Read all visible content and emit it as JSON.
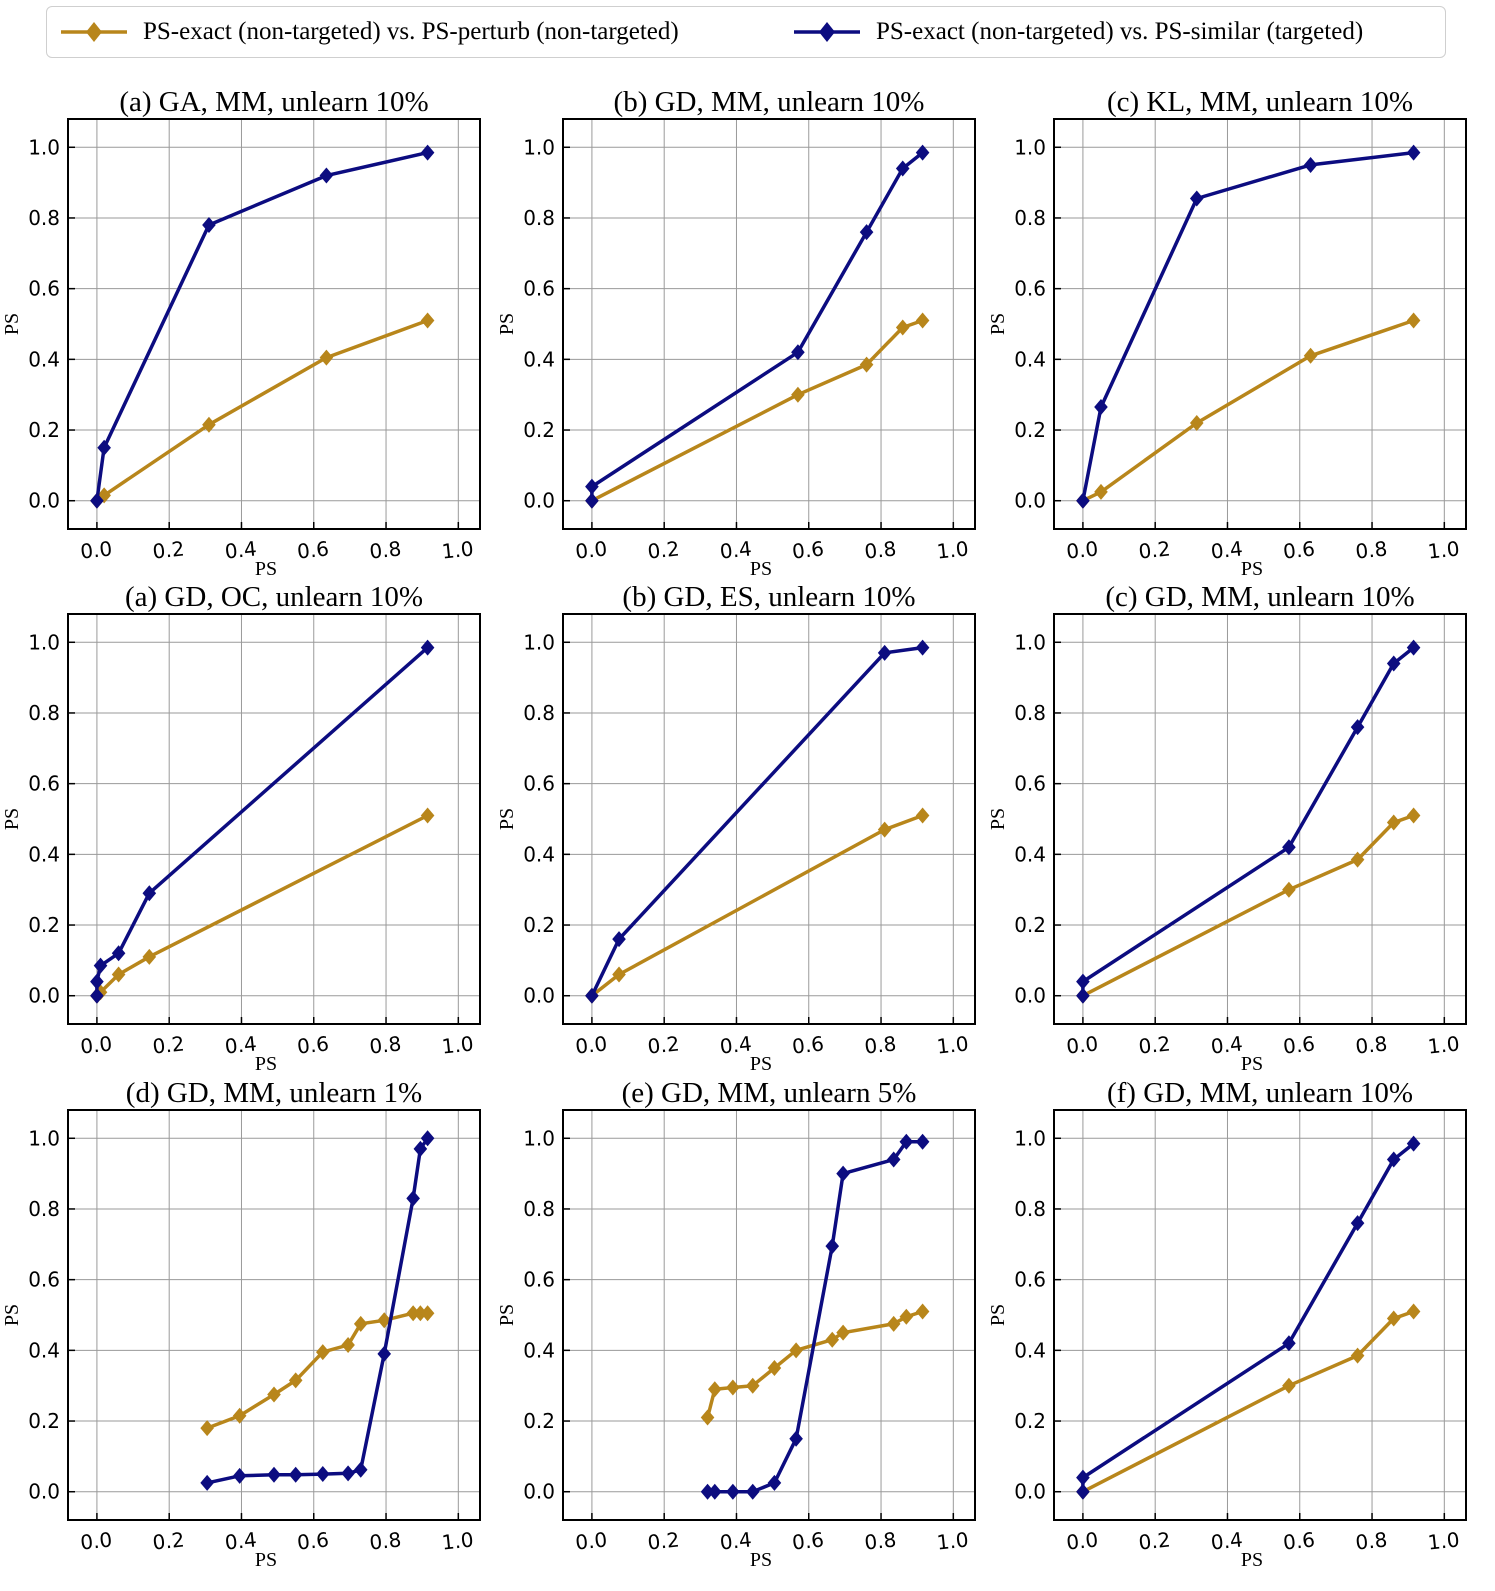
{
  "legend": {
    "items": [
      {
        "label": "PS-exact (non-targeted) vs. PS-perturb (non-targeted)",
        "color": "#b8861b"
      },
      {
        "label": "PS-exact (non-targeted) vs. PS-similar (targeted)",
        "color": "#0c0c80"
      }
    ]
  },
  "chart_data": [
    {
      "type": "line",
      "title": "(a) GA, MM, unlearn 10%",
      "xlabel": "PS",
      "ylabel": "PS",
      "xlim": [
        -0.08,
        1.06
      ],
      "ylim": [
        -0.08,
        1.08
      ],
      "grid": true,
      "x_ticks": [
        "0.0",
        "0.2",
        "0.4",
        "0.6",
        "0.8",
        "1.0"
      ],
      "y_ticks": [
        "0.0",
        "0.2",
        "0.4",
        "0.6",
        "0.8",
        "1.0"
      ],
      "series": [
        {
          "name": "PS-exact (non-targeted) vs. PS-perturb (non-targeted)",
          "points": [
            [
              0.0,
              0.0
            ],
            [
              0.02,
              0.015
            ],
            [
              0.31,
              0.215
            ],
            [
              0.635,
              0.405
            ],
            [
              0.915,
              0.51
            ]
          ]
        },
        {
          "name": "PS-exact (non-targeted) vs. PS-similar (targeted)",
          "points": [
            [
              0.0,
              0.0
            ],
            [
              0.02,
              0.15
            ],
            [
              0.31,
              0.78
            ],
            [
              0.635,
              0.92
            ],
            [
              0.915,
              0.985
            ]
          ]
        }
      ]
    },
    {
      "type": "line",
      "title": "(b) GD, MM, unlearn 10%",
      "xlabel": "PS",
      "ylabel": "PS",
      "xlim": [
        -0.08,
        1.06
      ],
      "ylim": [
        -0.08,
        1.08
      ],
      "grid": true,
      "x_ticks": [
        "0.0",
        "0.2",
        "0.4",
        "0.6",
        "0.8",
        "1.0"
      ],
      "y_ticks": [
        "0.0",
        "0.2",
        "0.4",
        "0.6",
        "0.8",
        "1.0"
      ],
      "series": [
        {
          "name": "PS-exact (non-targeted) vs. PS-perturb (non-targeted)",
          "points": [
            [
              0.0,
              0.0
            ],
            [
              0.57,
              0.3
            ],
            [
              0.76,
              0.385
            ],
            [
              0.86,
              0.49
            ],
            [
              0.915,
              0.51
            ]
          ]
        },
        {
          "name": "PS-exact (non-targeted) vs. PS-similar (targeted)",
          "points": [
            [
              0.0,
              0.0
            ],
            [
              0.0,
              0.04
            ],
            [
              0.57,
              0.42
            ],
            [
              0.76,
              0.76
            ],
            [
              0.86,
              0.94
            ],
            [
              0.915,
              0.985
            ]
          ]
        }
      ]
    },
    {
      "type": "line",
      "title": "(c) KL, MM, unlearn 10%",
      "xlabel": "PS",
      "ylabel": "PS",
      "xlim": [
        -0.08,
        1.06
      ],
      "ylim": [
        -0.08,
        1.08
      ],
      "grid": true,
      "x_ticks": [
        "0.0",
        "0.2",
        "0.4",
        "0.6",
        "0.8",
        "1.0"
      ],
      "y_ticks": [
        "0.0",
        "0.2",
        "0.4",
        "0.6",
        "0.8",
        "1.0"
      ],
      "series": [
        {
          "name": "PS-exact (non-targeted) vs. PS-perturb (non-targeted)",
          "points": [
            [
              0.0,
              0.0
            ],
            [
              0.05,
              0.025
            ],
            [
              0.315,
              0.22
            ],
            [
              0.63,
              0.41
            ],
            [
              0.915,
              0.51
            ]
          ]
        },
        {
          "name": "PS-exact (non-targeted) vs. PS-similar (targeted)",
          "points": [
            [
              0.0,
              0.0
            ],
            [
              0.05,
              0.265
            ],
            [
              0.315,
              0.855
            ],
            [
              0.63,
              0.95
            ],
            [
              0.915,
              0.985
            ]
          ]
        }
      ]
    },
    {
      "type": "line",
      "title": "(a) GD, OC, unlearn 10%",
      "xlabel": "PS",
      "ylabel": "PS",
      "xlim": [
        -0.08,
        1.06
      ],
      "ylim": [
        -0.08,
        1.08
      ],
      "grid": true,
      "x_ticks": [
        "0.0",
        "0.2",
        "0.4",
        "0.6",
        "0.8",
        "1.0"
      ],
      "y_ticks": [
        "0.0",
        "0.2",
        "0.4",
        "0.6",
        "0.8",
        "1.0"
      ],
      "series": [
        {
          "name": "PS-exact (non-targeted) vs. PS-perturb (non-targeted)",
          "points": [
            [
              0.0,
              0.0
            ],
            [
              0.01,
              0.01
            ],
            [
              0.06,
              0.06
            ],
            [
              0.145,
              0.11
            ],
            [
              0.915,
              0.51
            ]
          ]
        },
        {
          "name": "PS-exact (non-targeted) vs. PS-similar (targeted)",
          "points": [
            [
              0.0,
              0.0
            ],
            [
              0.0,
              0.04
            ],
            [
              0.01,
              0.085
            ],
            [
              0.06,
              0.12
            ],
            [
              0.145,
              0.29
            ],
            [
              0.915,
              0.985
            ]
          ]
        }
      ]
    },
    {
      "type": "line",
      "title": "(b) GD, ES, unlearn 10%",
      "xlabel": "PS",
      "ylabel": "PS",
      "xlim": [
        -0.08,
        1.06
      ],
      "ylim": [
        -0.08,
        1.08
      ],
      "grid": true,
      "x_ticks": [
        "0.0",
        "0.2",
        "0.4",
        "0.6",
        "0.8",
        "1.0"
      ],
      "y_ticks": [
        "0.0",
        "0.2",
        "0.4",
        "0.6",
        "0.8",
        "1.0"
      ],
      "series": [
        {
          "name": "PS-exact (non-targeted) vs. PS-perturb (non-targeted)",
          "points": [
            [
              0.0,
              0.0
            ],
            [
              0.075,
              0.06
            ],
            [
              0.81,
              0.47
            ],
            [
              0.915,
              0.51
            ]
          ]
        },
        {
          "name": "PS-exact (non-targeted) vs. PS-similar (targeted)",
          "points": [
            [
              0.0,
              0.0
            ],
            [
              0.075,
              0.16
            ],
            [
              0.81,
              0.97
            ],
            [
              0.915,
              0.985
            ]
          ]
        }
      ]
    },
    {
      "type": "line",
      "title": "(c) GD, MM, unlearn 10%",
      "xlabel": "PS",
      "ylabel": "PS",
      "xlim": [
        -0.08,
        1.06
      ],
      "ylim": [
        -0.08,
        1.08
      ],
      "grid": true,
      "x_ticks": [
        "0.0",
        "0.2",
        "0.4",
        "0.6",
        "0.8",
        "1.0"
      ],
      "y_ticks": [
        "0.0",
        "0.2",
        "0.4",
        "0.6",
        "0.8",
        "1.0"
      ],
      "series": [
        {
          "name": "PS-exact (non-targeted) vs. PS-perturb (non-targeted)",
          "points": [
            [
              0.0,
              0.0
            ],
            [
              0.57,
              0.3
            ],
            [
              0.76,
              0.385
            ],
            [
              0.86,
              0.49
            ],
            [
              0.915,
              0.51
            ]
          ]
        },
        {
          "name": "PS-exact (non-targeted) vs. PS-similar (targeted)",
          "points": [
            [
              0.0,
              0.0
            ],
            [
              0.0,
              0.04
            ],
            [
              0.57,
              0.42
            ],
            [
              0.76,
              0.76
            ],
            [
              0.86,
              0.94
            ],
            [
              0.915,
              0.985
            ]
          ]
        }
      ]
    },
    {
      "type": "line",
      "title": "(d) GD, MM, unlearn 1%",
      "xlabel": "PS",
      "ylabel": "PS",
      "xlim": [
        -0.08,
        1.06
      ],
      "ylim": [
        -0.08,
        1.08
      ],
      "grid": true,
      "x_ticks": [
        "0.0",
        "0.2",
        "0.4",
        "0.6",
        "0.8",
        "1.0"
      ],
      "y_ticks": [
        "0.0",
        "0.2",
        "0.4",
        "0.6",
        "0.8",
        "1.0"
      ],
      "series": [
        {
          "name": "PS-exact (non-targeted) vs. PS-perturb (non-targeted)",
          "points": [
            [
              0.305,
              0.18
            ],
            [
              0.395,
              0.215
            ],
            [
              0.49,
              0.275
            ],
            [
              0.55,
              0.315
            ],
            [
              0.625,
              0.395
            ],
            [
              0.695,
              0.415
            ],
            [
              0.73,
              0.475
            ],
            [
              0.795,
              0.485
            ],
            [
              0.875,
              0.505
            ],
            [
              0.895,
              0.505
            ],
            [
              0.915,
              0.505
            ]
          ]
        },
        {
          "name": "PS-exact (non-targeted) vs. PS-similar (targeted)",
          "points": [
            [
              0.305,
              0.025
            ],
            [
              0.395,
              0.045
            ],
            [
              0.49,
              0.048
            ],
            [
              0.55,
              0.048
            ],
            [
              0.625,
              0.05
            ],
            [
              0.695,
              0.052
            ],
            [
              0.73,
              0.062
            ],
            [
              0.795,
              0.39
            ],
            [
              0.875,
              0.83
            ],
            [
              0.895,
              0.97
            ],
            [
              0.915,
              1.0
            ]
          ]
        }
      ]
    },
    {
      "type": "line",
      "title": "(e) GD, MM, unlearn 5%",
      "xlabel": "PS",
      "ylabel": "PS",
      "xlim": [
        -0.08,
        1.06
      ],
      "ylim": [
        -0.08,
        1.08
      ],
      "grid": true,
      "x_ticks": [
        "0.0",
        "0.2",
        "0.4",
        "0.6",
        "0.8",
        "1.0"
      ],
      "y_ticks": [
        "0.0",
        "0.2",
        "0.4",
        "0.6",
        "0.8",
        "1.0"
      ],
      "series": [
        {
          "name": "PS-exact (non-targeted) vs. PS-perturb (non-targeted)",
          "points": [
            [
              0.32,
              0.21
            ],
            [
              0.34,
              0.29
            ],
            [
              0.39,
              0.295
            ],
            [
              0.445,
              0.3
            ],
            [
              0.505,
              0.35
            ],
            [
              0.565,
              0.4
            ],
            [
              0.665,
              0.43
            ],
            [
              0.695,
              0.45
            ],
            [
              0.835,
              0.475
            ],
            [
              0.87,
              0.495
            ],
            [
              0.915,
              0.51
            ]
          ]
        },
        {
          "name": "PS-exact (non-targeted) vs. PS-similar (targeted)",
          "points": [
            [
              0.32,
              0.0
            ],
            [
              0.34,
              0.0
            ],
            [
              0.39,
              0.0
            ],
            [
              0.445,
              0.0
            ],
            [
              0.505,
              0.025
            ],
            [
              0.565,
              0.15
            ],
            [
              0.665,
              0.695
            ],
            [
              0.695,
              0.9
            ],
            [
              0.835,
              0.94
            ],
            [
              0.87,
              0.99
            ],
            [
              0.915,
              0.99
            ]
          ]
        }
      ]
    },
    {
      "type": "line",
      "title": "(f) GD, MM, unlearn 10%",
      "xlabel": "PS",
      "ylabel": "PS",
      "xlim": [
        -0.08,
        1.06
      ],
      "ylim": [
        -0.08,
        1.08
      ],
      "grid": true,
      "x_ticks": [
        "0.0",
        "0.2",
        "0.4",
        "0.6",
        "0.8",
        "1.0"
      ],
      "y_ticks": [
        "0.0",
        "0.2",
        "0.4",
        "0.6",
        "0.8",
        "1.0"
      ],
      "series": [
        {
          "name": "PS-exact (non-targeted) vs. PS-perturb (non-targeted)",
          "points": [
            [
              0.0,
              0.0
            ],
            [
              0.57,
              0.3
            ],
            [
              0.76,
              0.385
            ],
            [
              0.86,
              0.49
            ],
            [
              0.915,
              0.51
            ]
          ]
        },
        {
          "name": "PS-exact (non-targeted) vs. PS-similar (targeted)",
          "points": [
            [
              0.0,
              0.0
            ],
            [
              0.0,
              0.04
            ],
            [
              0.57,
              0.42
            ],
            [
              0.76,
              0.76
            ],
            [
              0.86,
              0.94
            ],
            [
              0.915,
              0.985
            ]
          ]
        }
      ]
    }
  ]
}
